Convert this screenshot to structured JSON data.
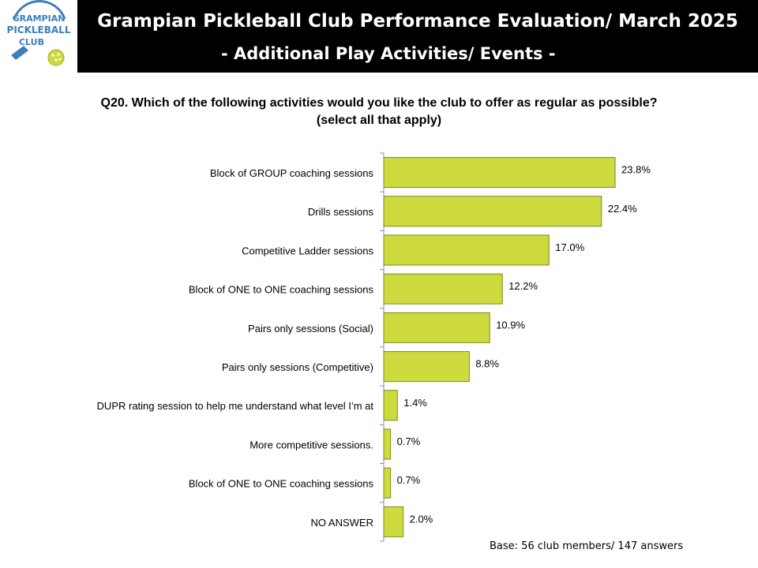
{
  "header": {
    "title": "Grampian Pickleball Club Performance Evaluation/ March 2025",
    "subtitle": "- Additional Play Activities/ Events -"
  },
  "logo": {
    "text_line1": "GRAMPIAN",
    "text_line2": "PICKLEBALL",
    "text_line3": "CLUB"
  },
  "question": {
    "line1": "Q20. Which of the following activities would you like the club to offer as regular as possible?",
    "line2": "(select all that apply)"
  },
  "footnote": "Base: 56 club members/ 147 answers",
  "colors": {
    "bar_fill": "#cddb3e",
    "bar_stroke": "#7a8a1e",
    "axis": "#5b9bd5",
    "header_bg": "#000000",
    "logo_blue": "#3d7fb8",
    "logo_ball": "#cddb3e"
  },
  "chart_data": {
    "type": "bar",
    "orientation": "horizontal",
    "categories": [
      "Block of GROUP coaching sessions",
      "Drills sessions",
      "Competitive Ladder sessions",
      "Block of ONE to ONE coaching sessions",
      "Pairs only sessions (Social)",
      "Pairs only sessions (Competitive)",
      "DUPR rating session to help me understand what level I’m at",
      "More competitive sessions.",
      "Block of ONE to ONE coaching sessions",
      "NO ANSWER"
    ],
    "values": [
      23.8,
      22.4,
      17.0,
      12.2,
      10.9,
      8.8,
      1.4,
      0.7,
      0.7,
      2.0
    ],
    "value_labels": [
      "23.8%",
      "22.4%",
      "17.0%",
      "12.2%",
      "10.9%",
      "8.8%",
      "1.4%",
      "0.7%",
      "0.7%",
      "2.0%"
    ],
    "unit": "%",
    "xlim": [
      0,
      38.5
    ],
    "grid": false
  }
}
